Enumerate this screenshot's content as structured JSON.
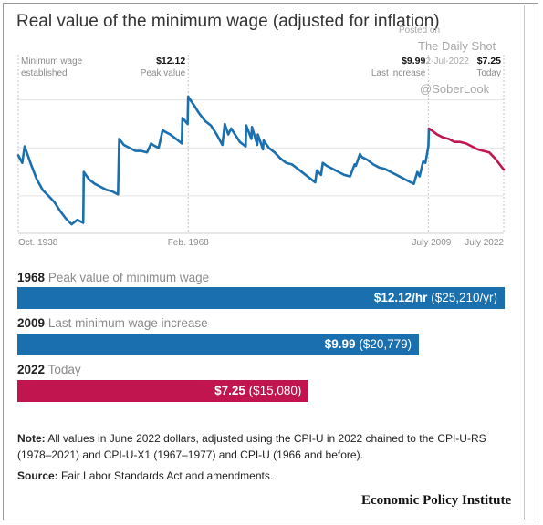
{
  "title": "Real value of the minimum wage (adjusted for inflation)",
  "watermark": {
    "line1": "Posted on",
    "line2": "The Daily Shot",
    "line3": "12-Jul-2022",
    "line4": "@SoberLook"
  },
  "chart_data": {
    "type": "line",
    "xlim": [
      1938.8,
      2022.5
    ],
    "ylim": [
      3.0,
      14.8
    ],
    "x_ticks": [
      {
        "x": 1938.8,
        "label": "Oct. 1938"
      },
      {
        "x": 1968.1,
        "label": "Feb. 1968"
      },
      {
        "x": 2009.5,
        "label": "July 2009"
      },
      {
        "x": 2022.5,
        "label": "July 2022"
      }
    ],
    "annotations": [
      {
        "x": 1938.8,
        "label": "Minimum wage established",
        "value": ""
      },
      {
        "x": 1968.1,
        "label": "Peak value",
        "value": "$12.12"
      },
      {
        "x": 2009.5,
        "label": "Last increase",
        "value": "$9.99"
      },
      {
        "x": 2022.5,
        "label": "Today",
        "value": "$7.25"
      }
    ],
    "gridlines": [
      5.5,
      8.7,
      11.9
    ],
    "series": [
      {
        "color": "#1a6fae",
        "points": [
          [
            1938.8,
            8.2
          ],
          [
            1939.5,
            7.7
          ],
          [
            1939.9,
            8.8
          ],
          [
            1941,
            7.6
          ],
          [
            1942,
            6.6
          ],
          [
            1943,
            5.9
          ],
          [
            1944,
            5.5
          ],
          [
            1945,
            5.1
          ],
          [
            1946,
            4.5
          ],
          [
            1947,
            4.0
          ],
          [
            1948,
            3.6
          ],
          [
            1949,
            3.9
          ],
          [
            1950,
            3.7
          ],
          [
            1950.1,
            7.1
          ],
          [
            1951,
            6.6
          ],
          [
            1952,
            6.3
          ],
          [
            1953,
            6.1
          ],
          [
            1954,
            5.9
          ],
          [
            1955,
            5.8
          ],
          [
            1956,
            5.6
          ],
          [
            1956.2,
            9.3
          ],
          [
            1957,
            8.9
          ],
          [
            1958,
            8.7
          ],
          [
            1959,
            8.5
          ],
          [
            1960,
            8.5
          ],
          [
            1961,
            8.4
          ],
          [
            1961.7,
            9.0
          ],
          [
            1962,
            8.9
          ],
          [
            1963,
            8.7
          ],
          [
            1963.7,
            9.9
          ],
          [
            1964,
            9.8
          ],
          [
            1965,
            9.6
          ],
          [
            1966,
            9.3
          ],
          [
            1967,
            9.0
          ],
          [
            1967.1,
            10.7
          ],
          [
            1968,
            10.3
          ],
          [
            1968.1,
            12.12
          ],
          [
            1969,
            11.6
          ],
          [
            1970,
            11.0
          ],
          [
            1971,
            10.5
          ],
          [
            1972,
            10.2
          ],
          [
            1973,
            9.6
          ],
          [
            1974,
            8.9
          ],
          [
            1974.4,
            10.3
          ],
          [
            1975,
            9.6
          ],
          [
            1975.5,
            10.0
          ],
          [
            1976,
            9.7
          ],
          [
            1977,
            9.1
          ],
          [
            1978,
            8.8
          ],
          [
            1978.1,
            10.2
          ],
          [
            1979,
            9.3
          ],
          [
            1979.1,
            10.1
          ],
          [
            1980,
            8.9
          ],
          [
            1980.1,
            9.6
          ],
          [
            1981,
            8.6
          ],
          [
            1981.1,
            9.2
          ],
          [
            1982,
            8.7
          ],
          [
            1983,
            8.4
          ],
          [
            1984,
            8.0
          ],
          [
            1985,
            7.7
          ],
          [
            1986,
            7.6
          ],
          [
            1987,
            7.3
          ],
          [
            1988,
            7.0
          ],
          [
            1989,
            6.7
          ],
          [
            1990,
            6.4
          ],
          [
            1990.3,
            7.2
          ],
          [
            1991,
            6.9
          ],
          [
            1991.3,
            7.7
          ],
          [
            1992,
            7.5
          ],
          [
            1993,
            7.3
          ],
          [
            1994,
            7.1
          ],
          [
            1995,
            6.9
          ],
          [
            1996,
            6.8
          ],
          [
            1996.8,
            7.6
          ],
          [
            1997,
            7.5
          ],
          [
            1997.7,
            8.3
          ],
          [
            1998,
            8.1
          ],
          [
            1999,
            7.9
          ],
          [
            2000,
            7.6
          ],
          [
            2001,
            7.4
          ],
          [
            2002,
            7.3
          ],
          [
            2003,
            7.1
          ],
          [
            2004,
            6.9
          ],
          [
            2005,
            6.7
          ],
          [
            2006,
            6.5
          ],
          [
            2007,
            6.3
          ],
          [
            2007.6,
            7.1
          ],
          [
            2008,
            6.8
          ],
          [
            2008.6,
            7.8
          ],
          [
            2009,
            7.7
          ],
          [
            2009.5,
            8.8
          ],
          [
            2009.6,
            9.99
          ]
        ]
      },
      {
        "color": "#c0154f",
        "points": [
          [
            2009.6,
            9.99
          ],
          [
            2010,
            9.9
          ],
          [
            2011,
            9.6
          ],
          [
            2012,
            9.4
          ],
          [
            2013,
            9.3
          ],
          [
            2014,
            9.1
          ],
          [
            2015,
            9.1
          ],
          [
            2016,
            9.0
          ],
          [
            2017,
            8.8
          ],
          [
            2018,
            8.6
          ],
          [
            2019,
            8.5
          ],
          [
            2020,
            8.4
          ],
          [
            2021,
            8.0
          ],
          [
            2022,
            7.5
          ],
          [
            2022.5,
            7.25
          ]
        ]
      }
    ]
  },
  "bars": [
    {
      "year": "1968",
      "desc": "Peak value of minimum wage",
      "hourly": "$12.12/hr",
      "yearly": "($25,210/yr)",
      "value": 12.12,
      "color": "#1a6fae"
    },
    {
      "year": "2009",
      "desc": "Last minimum wage increase",
      "hourly": "$9.99",
      "yearly": "($20,779)",
      "value": 9.99,
      "color": "#1a6fae"
    },
    {
      "year": "2022",
      "desc": "Today",
      "hourly": "$7.25",
      "yearly": "($15,080)",
      "value": 7.25,
      "color": "#c0154f"
    }
  ],
  "note": {
    "label": "Note:",
    "text": "All values in June 2022 dollars, adjusted using the CPI-U in 2022 chained to the CPI-U-RS (1978–2021) and CPI-U-X1 (1967–1977) and CPI-U (1966 and before)."
  },
  "source": {
    "label": "Source:",
    "text": "Fair Labor Standards Act and amendments."
  },
  "brand": "Economic Policy Institute"
}
